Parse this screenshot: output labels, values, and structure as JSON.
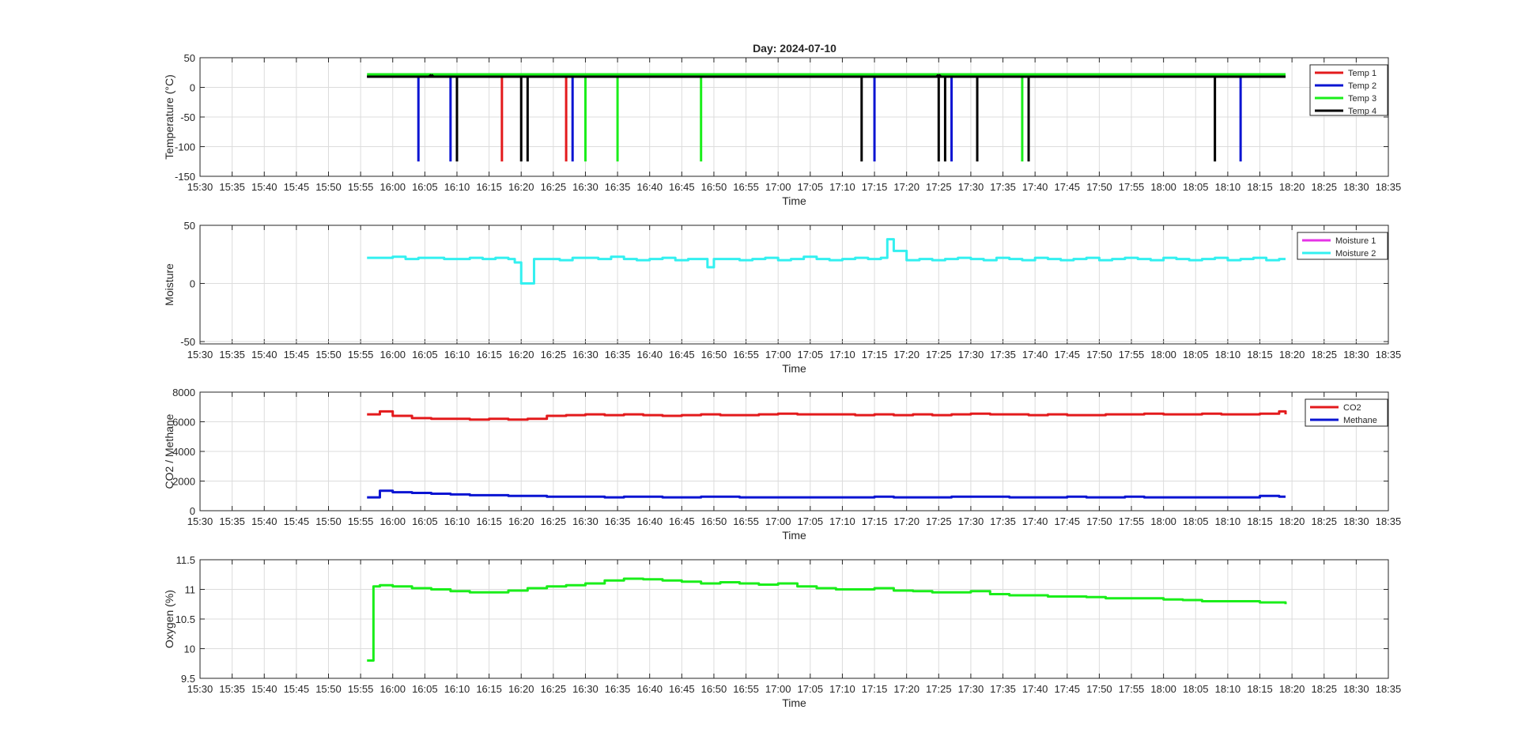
{
  "figure": {
    "title": "Day: 2024-07-10"
  },
  "colors": {
    "red": "#e31a1c",
    "blue": "#0a14d2",
    "green": "#1aee1a",
    "black": "#000000",
    "magenta": "#e633e6",
    "cyan": "#33f0f0",
    "grid": "#dcdcdc",
    "axis": "#262626"
  },
  "chart_data": [
    {
      "type": "line",
      "xlabel": "Time",
      "ylabel": "Temperature (°C)",
      "xlim": [
        "15:30",
        "18:35"
      ],
      "ylim": [
        -150,
        50
      ],
      "yticks": [
        -150,
        -100,
        -50,
        0,
        50
      ],
      "grid": true,
      "legend_position": "top-right",
      "series": [
        {
          "name": "Temp 1",
          "color": "#e31a1c",
          "baseline": 19,
          "x": [
            "15:56",
            "18:19"
          ],
          "spikes": [
            {
              "t": "16:17",
              "v": -125
            },
            {
              "t": "16:27",
              "v": -125
            }
          ],
          "bumps": [
            {
              "t": "16:58",
              "v": 22
            }
          ]
        },
        {
          "name": "Temp 2",
          "color": "#0a14d2",
          "baseline": 18,
          "x": [
            "15:56",
            "18:19"
          ],
          "spikes": [
            {
              "t": "16:04",
              "v": -125
            },
            {
              "t": "16:09",
              "v": -125
            },
            {
              "t": "16:28",
              "v": -125
            },
            {
              "t": "17:15",
              "v": -125
            },
            {
              "t": "17:27",
              "v": -125
            },
            {
              "t": "18:12",
              "v": -125
            }
          ],
          "bumps": []
        },
        {
          "name": "Temp 3",
          "color": "#1aee1a",
          "baseline": 22,
          "x": [
            "15:56",
            "18:19"
          ],
          "spikes": [
            {
              "t": "16:30",
              "v": -125
            },
            {
              "t": "16:35",
              "v": -125
            },
            {
              "t": "16:48",
              "v": -125
            },
            {
              "t": "17:38",
              "v": -125
            }
          ],
          "bumps": []
        },
        {
          "name": "Temp 4",
          "color": "#000000",
          "baseline": 18,
          "x": [
            "15:56",
            "18:19"
          ],
          "spikes": [
            {
              "t": "16:10",
              "v": -125
            },
            {
              "t": "16:20",
              "v": -125
            },
            {
              "t": "16:21",
              "v": -125
            },
            {
              "t": "17:13",
              "v": -125
            },
            {
              "t": "17:25",
              "v": -125
            },
            {
              "t": "17:26",
              "v": -125
            },
            {
              "t": "17:31",
              "v": -125
            },
            {
              "t": "17:39",
              "v": -125
            },
            {
              "t": "18:08",
              "v": -125
            }
          ],
          "bumps": [
            {
              "t": "16:06",
              "v": 21
            },
            {
              "t": "17:25",
              "v": 21
            }
          ]
        }
      ]
    },
    {
      "type": "line",
      "xlabel": "Time",
      "ylabel": "Moisture",
      "xlim": [
        "15:30",
        "18:35"
      ],
      "ylim": [
        -52,
        50
      ],
      "yticks": [
        -50,
        0,
        50
      ],
      "grid": true,
      "legend_position": "top-right",
      "series": [
        {
          "name": "Moisture 1",
          "color": "#e633e6",
          "x": [
            "15:56",
            "18:19"
          ],
          "y": [
            -53,
            -53
          ]
        },
        {
          "name": "Moisture 2",
          "color": "#33f0f0",
          "x": [
            "15:56",
            "15:58",
            "16:00",
            "16:02",
            "16:04",
            "16:06",
            "16:08",
            "16:10",
            "16:12",
            "16:14",
            "16:16",
            "16:18",
            "16:19",
            "16:20",
            "16:22",
            "16:24",
            "16:26",
            "16:28",
            "16:30",
            "16:32",
            "16:34",
            "16:36",
            "16:38",
            "16:40",
            "16:42",
            "16:44",
            "16:46",
            "16:48",
            "16:49",
            "16:50",
            "16:52",
            "16:54",
            "16:56",
            "16:58",
            "17:00",
            "17:02",
            "17:04",
            "17:06",
            "17:08",
            "17:10",
            "17:12",
            "17:14",
            "17:16",
            "17:17",
            "17:18",
            "17:20",
            "17:22",
            "17:24",
            "17:26",
            "17:28",
            "17:30",
            "17:32",
            "17:34",
            "17:36",
            "17:38",
            "17:40",
            "17:42",
            "17:44",
            "17:46",
            "17:48",
            "17:50",
            "17:52",
            "17:54",
            "17:56",
            "17:58",
            "18:00",
            "18:02",
            "18:04",
            "18:06",
            "18:08",
            "18:10",
            "18:12",
            "18:14",
            "18:16",
            "18:18",
            "18:19"
          ],
          "y": [
            22,
            22,
            23,
            21,
            22,
            22,
            21,
            21,
            22,
            21,
            22,
            21,
            18,
            0,
            21,
            21,
            20,
            22,
            22,
            21,
            23,
            21,
            20,
            21,
            22,
            20,
            21,
            21,
            14,
            21,
            21,
            20,
            21,
            22,
            20,
            21,
            23,
            21,
            20,
            21,
            22,
            21,
            22,
            38,
            28,
            20,
            21,
            20,
            21,
            22,
            21,
            20,
            22,
            21,
            20,
            22,
            21,
            20,
            21,
            22,
            20,
            21,
            22,
            21,
            20,
            22,
            21,
            20,
            21,
            22,
            20,
            21,
            22,
            20,
            21,
            21
          ]
        }
      ]
    },
    {
      "type": "line",
      "xlabel": "Time",
      "ylabel": "CO2 / Methane",
      "xlim": [
        "15:30",
        "18:35"
      ],
      "ylim": [
        0,
        8000
      ],
      "yticks": [
        0,
        2000,
        4000,
        6000,
        8000
      ],
      "grid": true,
      "legend_position": "top-right",
      "series": [
        {
          "name": "CO2",
          "color": "#e31a1c",
          "x": [
            "15:56",
            "15:58",
            "16:00",
            "16:03",
            "16:06",
            "16:09",
            "16:12",
            "16:15",
            "16:18",
            "16:21",
            "16:24",
            "16:27",
            "16:30",
            "16:33",
            "16:36",
            "16:39",
            "16:42",
            "16:45",
            "16:48",
            "16:51",
            "16:54",
            "16:57",
            "17:00",
            "17:03",
            "17:06",
            "17:09",
            "17:12",
            "17:15",
            "17:18",
            "17:21",
            "17:24",
            "17:27",
            "17:30",
            "17:33",
            "17:36",
            "17:39",
            "17:42",
            "17:45",
            "17:48",
            "17:51",
            "17:54",
            "17:57",
            "18:00",
            "18:03",
            "18:06",
            "18:09",
            "18:12",
            "18:15",
            "18:18",
            "18:19"
          ],
          "y": [
            6500,
            6700,
            6400,
            6250,
            6200,
            6200,
            6150,
            6200,
            6150,
            6200,
            6400,
            6450,
            6500,
            6450,
            6500,
            6450,
            6400,
            6450,
            6500,
            6450,
            6450,
            6500,
            6550,
            6500,
            6500,
            6500,
            6450,
            6500,
            6450,
            6500,
            6450,
            6500,
            6550,
            6500,
            6500,
            6450,
            6500,
            6450,
            6450,
            6500,
            6500,
            6550,
            6500,
            6500,
            6550,
            6500,
            6500,
            6550,
            6700,
            6500
          ]
        },
        {
          "name": "Methane",
          "color": "#0a14d2",
          "x": [
            "15:56",
            "15:58",
            "16:00",
            "16:03",
            "16:06",
            "16:09",
            "16:12",
            "16:15",
            "16:18",
            "16:21",
            "16:24",
            "16:27",
            "16:30",
            "16:33",
            "16:36",
            "16:39",
            "16:42",
            "16:45",
            "16:48",
            "16:51",
            "16:54",
            "16:57",
            "17:00",
            "17:03",
            "17:06",
            "17:09",
            "17:12",
            "17:15",
            "17:18",
            "17:21",
            "17:24",
            "17:27",
            "17:30",
            "17:33",
            "17:36",
            "17:39",
            "17:42",
            "17:45",
            "17:48",
            "17:51",
            "17:54",
            "17:57",
            "18:00",
            "18:03",
            "18:06",
            "18:09",
            "18:12",
            "18:15",
            "18:18",
            "18:19"
          ],
          "y": [
            900,
            1350,
            1250,
            1200,
            1150,
            1100,
            1050,
            1050,
            1000,
            1000,
            950,
            950,
            950,
            900,
            950,
            950,
            900,
            900,
            950,
            950,
            900,
            900,
            900,
            900,
            900,
            900,
            900,
            950,
            900,
            900,
            900,
            950,
            950,
            950,
            900,
            900,
            900,
            950,
            900,
            900,
            950,
            900,
            900,
            900,
            900,
            900,
            900,
            1000,
            950,
            950
          ]
        }
      ]
    },
    {
      "type": "line",
      "xlabel": "Time",
      "ylabel": "Oxygen (%)",
      "xlim": [
        "15:30",
        "18:35"
      ],
      "ylim": [
        9.5,
        11.5
      ],
      "yticks": [
        9.5,
        10,
        10.5,
        11,
        11.5
      ],
      "grid": true,
      "legend_position": "none",
      "series": [
        {
          "name": "",
          "color": "#1aee1a",
          "x": [
            "15:56",
            "15:57",
            "15:57",
            "15:58",
            "16:00",
            "16:03",
            "16:06",
            "16:09",
            "16:12",
            "16:15",
            "16:18",
            "16:21",
            "16:24",
            "16:27",
            "16:30",
            "16:33",
            "16:36",
            "16:39",
            "16:42",
            "16:45",
            "16:48",
            "16:51",
            "16:54",
            "16:57",
            "17:00",
            "17:03",
            "17:06",
            "17:09",
            "17:12",
            "17:15",
            "17:18",
            "17:21",
            "17:24",
            "17:27",
            "17:30",
            "17:33",
            "17:36",
            "17:39",
            "17:42",
            "17:45",
            "17:48",
            "17:51",
            "17:54",
            "17:57",
            "18:00",
            "18:03",
            "18:06",
            "18:09",
            "18:12",
            "18:15",
            "18:18",
            "18:19"
          ],
          "y": [
            9.8,
            10.4,
            11.05,
            11.07,
            11.05,
            11.02,
            11.0,
            10.97,
            10.95,
            10.95,
            10.98,
            11.02,
            11.05,
            11.07,
            11.1,
            11.15,
            11.18,
            11.17,
            11.15,
            11.13,
            11.1,
            11.12,
            11.1,
            11.08,
            11.1,
            11.05,
            11.02,
            11.0,
            11.0,
            11.02,
            10.98,
            10.97,
            10.95,
            10.95,
            10.97,
            10.92,
            10.9,
            10.9,
            10.88,
            10.88,
            10.87,
            10.85,
            10.85,
            10.85,
            10.83,
            10.82,
            10.8,
            10.8,
            10.8,
            10.78,
            10.78,
            10.75
          ]
        }
      ]
    }
  ]
}
